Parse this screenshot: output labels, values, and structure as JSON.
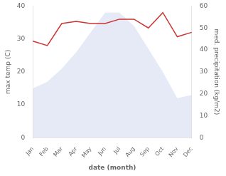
{
  "chart_data": {
    "type": "line",
    "xlabel": "date (month)",
    "ylabel": "max temp (C)",
    "y2label": "med. precipitation (kg/m2)",
    "categories": [
      "Jan",
      "Feb",
      "Mar",
      "Apr",
      "May",
      "Jun",
      "Jul",
      "Aug",
      "Sep",
      "Oct",
      "Nov",
      "Dec"
    ],
    "series": [
      {
        "type": "area",
        "color": "#c8d0ee",
        "values": [
          15,
          17,
          21,
          26,
          32,
          38,
          38,
          34,
          27,
          20,
          12,
          13
        ]
      },
      {
        "type": "line",
        "color": "#cc3333",
        "axis": "y2",
        "values": [
          44,
          42,
          52,
          53,
          52,
          52,
          54,
          54,
          50,
          57,
          46,
          48
        ]
      }
    ],
    "ylim": [
      0,
      40
    ],
    "yticks": [
      0,
      10,
      20,
      30,
      40
    ],
    "y2lim": [
      0,
      60
    ],
    "y2ticks": [
      0,
      10,
      20,
      30,
      40,
      50,
      60
    ],
    "grid": false
  }
}
